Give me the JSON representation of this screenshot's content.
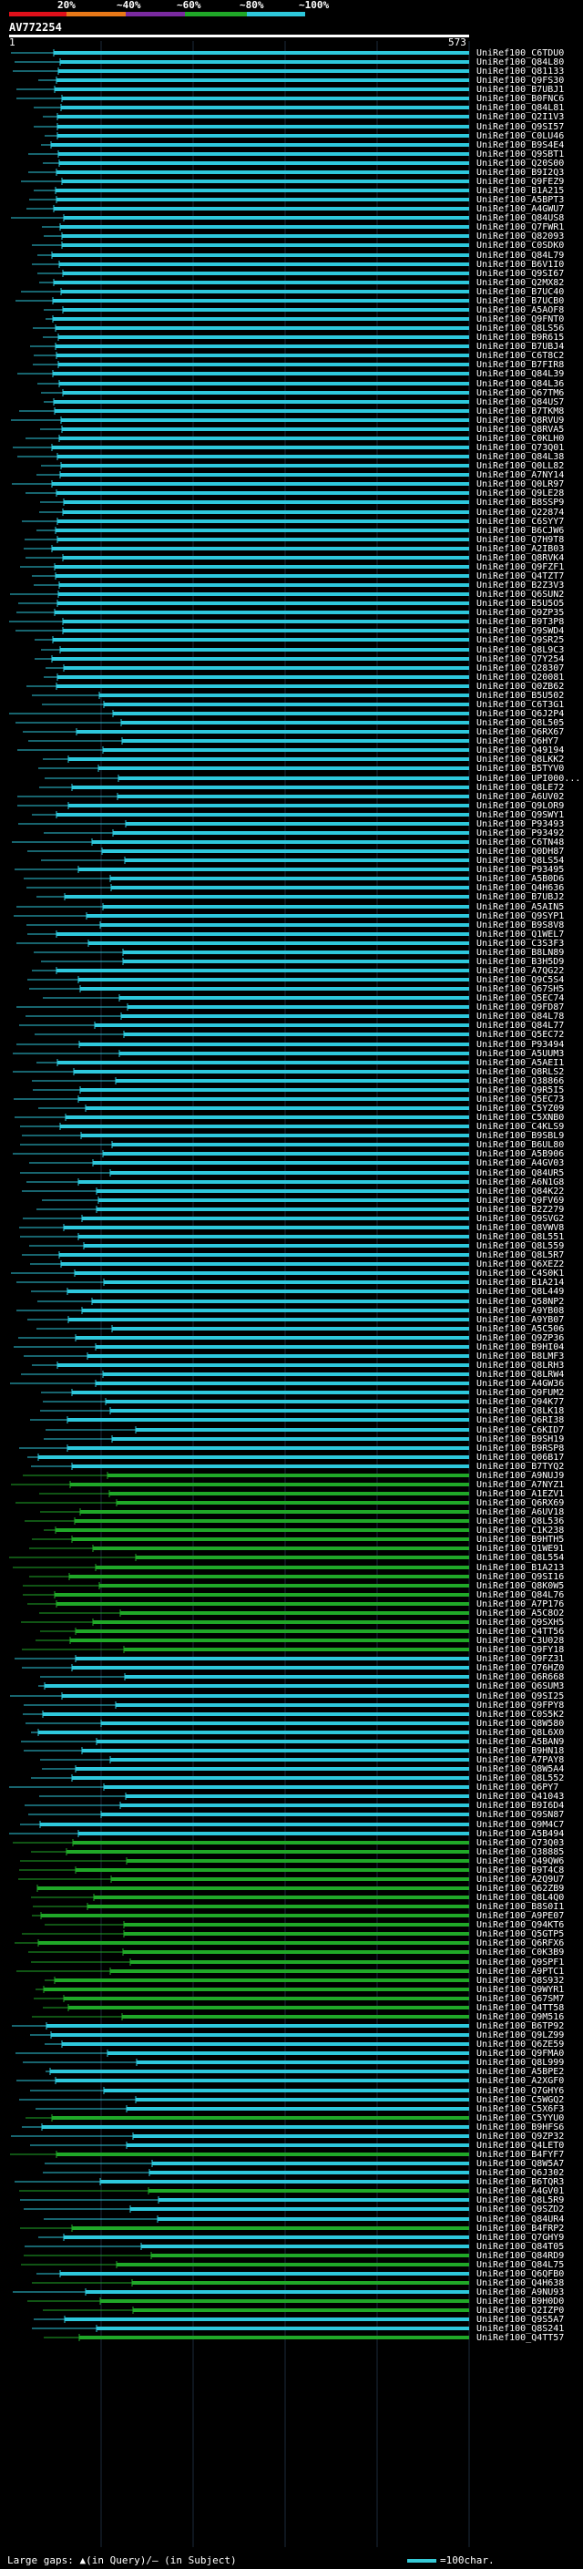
{
  "query_id": "AV772254",
  "ruler": {
    "start": "1",
    "end": "573"
  },
  "legend": {
    "ticks": [
      "20%",
      "~40%",
      "~60%",
      "~80%",
      "~100%"
    ],
    "colors": [
      "#e0101a",
      "#e87818",
      "#7a2aa0",
      "#20a828",
      "#2ec8dc"
    ]
  },
  "footer": {
    "gaps": "Large gaps: ▲(in Query)/– (in Subject)",
    "scale": "=100char."
  },
  "hits": [
    "UniRef100_C6TDU0",
    "UniRef100_Q84L80",
    "UniRef100_Q81133",
    "UniRef100_Q9FS30",
    "UniRef100_B7UBJ1",
    "UniRef100_B0FNC6",
    "UniRef100_Q84L81",
    "UniRef100_Q2I1V3",
    "UniRef100_Q9SI57",
    "UniRef100_C0LU46",
    "UniRef100_B9S4E4",
    "UniRef100_Q9SBT1",
    "UniRef100_Q20S00",
    "UniRef100_B9I2Q3",
    "UniRef100_Q9FEZ9",
    "UniRef100_B1A215",
    "UniRef100_A5BPT3",
    "UniRef100_A4GWU7",
    "UniRef100_Q84US8",
    "UniRef100_Q7FWR1",
    "UniRef100_Q82093",
    "UniRef100_C0SDK0",
    "UniRef100_Q84L79",
    "UniRef100_B6V1I0",
    "UniRef100_Q9SI67",
    "UniRef100_Q2MX82",
    "UniRef100_B7UC40",
    "UniRef100_B7UCB0",
    "UniRef100_A5AOF8",
    "UniRef100_Q9FNT0",
    "UniRef100_Q8LS56",
    "UniRef100_B9R615",
    "UniRef100_B7UBJ4",
    "UniRef100_C6T8C2",
    "UniRef100_B7FIR8",
    "UniRef100_Q84L39",
    "UniRef100_Q84L36",
    "UniRef100_Q67TM6",
    "UniRef100_Q84US7",
    "UniRef100_B7TKM8",
    "UniRef100_Q8RVU9",
    "UniRef100_Q8RVA5",
    "UniRef100_C0KLH0",
    "UniRef100_Q73Q01",
    "UniRef100_Q84L38",
    "UniRef100_Q0LL82",
    "UniRef100_A7NY14",
    "UniRef100_Q0LR97",
    "UniRef100_Q9LE28",
    "UniRef100_B8SSP9",
    "UniRef100_Q22874",
    "UniRef100_C6SYY7",
    "UniRef100_B6CJW6",
    "UniRef100_Q7H9T8",
    "UniRef100_A2IB03",
    "UniRef100_Q8RVK4",
    "UniRef100_Q9FZF1",
    "UniRef100_Q4TZT7",
    "UniRef100_B2Z3V3",
    "UniRef100_Q6SUN2",
    "UniRef100_B5U5O5",
    "UniRef100_Q9ZP35",
    "UniRef100_B9T3P8",
    "UniRef100_Q9SWD4",
    "UniRef100_Q9SR25",
    "UniRef100_Q8L9C3",
    "UniRef100_Q7Y254",
    "UniRef100_Q28307",
    "UniRef100_Q20081",
    "UniRef100_Q0ZB62",
    "UniRef100_B5U502",
    "UniRef100_C6T3G1",
    "UniRef100_Q6J2P4",
    "UniRef100_Q8L505",
    "UniRef100_Q6RX67",
    "UniRef100_Q6HY7",
    "UniRef100_Q49194",
    "UniRef100_Q8LKK2",
    "UniRef100_B5TYV0",
    "UniRef100_UPI000...",
    "UniRef100_Q8LE72",
    "UniRef100_A6UV02",
    "UniRef100_Q9LOR9",
    "UniRef100_Q9SWY1",
    "UniRef100_P93493",
    "UniRef100_P93492",
    "UniRef100_C6TN48",
    "UniRef100_Q0DH87",
    "UniRef100_Q8LS54",
    "UniRef100_P93495",
    "UniRef100_A5B0D6",
    "UniRef100_Q4H636",
    "UniRef100_B7UBJ2",
    "UniRef100_A5AIN5",
    "UniRef100_Q9SYP1",
    "UniRef100_B9S8V8",
    "UniRef100_Q1WEL7",
    "UniRef100_C3S3F3",
    "UniRef100_B8LN89",
    "UniRef100_B3H5D9",
    "UniRef100_A7QG22",
    "UniRef100_Q9C5S4",
    "UniRef100_Q67SH5",
    "UniRef100_Q5EC74",
    "UniRef100_Q9FD87",
    "UniRef100_Q84L78",
    "UniRef100_Q84L77",
    "UniRef100_Q5EC72",
    "UniRef100_P93494",
    "UniRef100_A5UUM3",
    "UniRef100_A5AEI1",
    "UniRef100_Q8RLS2",
    "UniRef100_Q38866",
    "UniRef100_Q9R5I5",
    "UniRef100_Q5EC73",
    "UniRef100_C5YZ09",
    "UniRef100_C5XNB0",
    "UniRef100_C4KLS9",
    "UniRef100_B9SBL9",
    "UniRef100_B6UL80",
    "UniRef100_A5B906",
    "UniRef100_A4GV03",
    "UniRef100_Q84UR5",
    "UniRef100_A6N1G8",
    "UniRef100_Q84K22",
    "UniRef100_Q9FV69",
    "UniRef100_B2Z279",
    "UniRef100_Q9SVG2",
    "UniRef100_Q8VWV8",
    "UniRef100_Q8L551",
    "UniRef100_Q8L559",
    "UniRef100_Q8L5R7",
    "UniRef100_Q6XEZ2",
    "UniRef100_C4S0K1",
    "UniRef100_B1A214",
    "UniRef100_Q8L449",
    "UniRef100_Q58NP2",
    "UniRef100_A9YB08",
    "UniRef100_A9YB07",
    "UniRef100_A5C506",
    "UniRef100_Q9ZP36",
    "UniRef100_B9HI04",
    "UniRef100_B8LMF3",
    "UniRef100_Q8LRH3",
    "UniRef100_Q8LRW4",
    "UniRef100_A4GW36",
    "UniRef100_Q9FUM2",
    "UniRef100_Q94K77",
    "UniRef100_Q8LK18",
    "UniRef100_Q6RI38",
    "UniRef100_C6KID7",
    "UniRef100_B9SH19",
    "UniRef100_B9RSP8",
    "UniRef100_Q06B17",
    "UniRef100_B7TYQ2",
    "UniRef100_A9NUJ9",
    "UniRef100_A7NYZ1",
    "UniRef100_A1EZV1",
    "UniRef100_Q6RX69",
    "UniRef100_A6UV18",
    "UniRef100_Q8L536",
    "UniRef100_C1K238",
    "UniRef100_B9HTH5",
    "UniRef100_Q1WE91",
    "UniRef100_Q8L554",
    "UniRef100_B1A213",
    "UniRef100_Q9SI16",
    "UniRef100_Q8K0W5",
    "UniRef100_Q84L76",
    "UniRef100_A7P176",
    "UniRef100_A5C8O2",
    "UniRef100_Q9SXH5",
    "UniRef100_Q4TT56",
    "UniRef100_C3U028",
    "UniRef100_Q9FY18",
    "UniRef100_Q9FZ31",
    "UniRef100_Q76HZ0",
    "UniRef100_Q6R668",
    "UniRef100_Q6SUM3",
    "UniRef100_Q9SI25",
    "UniRef100_Q9FPY8",
    "UniRef100_C0S5K2",
    "UniRef100_Q8W580",
    "UniRef100_Q8L6X0",
    "UniRef100_A5BAN9",
    "UniRef100_B9HN18",
    "UniRef100_A7PAY8",
    "UniRef100_Q8W5A4",
    "UniRef100_Q8L552",
    "UniRef100_Q6PY7",
    "UniRef100_Q41043",
    "UniRef100_B9I6D4",
    "UniRef100_Q9SN87",
    "UniRef100_Q9M4C7",
    "UniRef100_A5B494",
    "UniRef100_Q73Q03",
    "UniRef100_Q38885",
    "UniRef100_Q49QW6",
    "UniRef100_B9T4C8",
    "UniRef100_A2Q9U7",
    "UniRef100_Q62ZB9",
    "UniRef100_Q8L4Q0",
    "UniRef100_B8S0I1",
    "UniRef100_A9PE07",
    "UniRef100_Q94KT6",
    "UniRef100_Q5GTP5",
    "UniRef100_Q6RFX6",
    "UniRef100_C0K3B9",
    "UniRef100_Q9SPF1",
    "UniRef100_A9PTC1",
    "UniRef100_Q8S932",
    "UniRef100_Q9WYR1",
    "UniRef100_Q67SM7",
    "UniRef100_Q4TT58",
    "UniRef100_Q9M516",
    "UniRef100_B6TP92",
    "UniRef100_Q9LZ99",
    "UniRef100_Q6ZE59",
    "UniRef100_Q9FMA0",
    "UniRef100_Q8L999",
    "UniRef100_A5BPE2",
    "UniRef100_A2XGF0",
    "UniRef100_Q7GHY6",
    "UniRef100_C5WGQ2",
    "UniRef100_C5X6F3",
    "UniRef100_C5YYU0",
    "UniRef100_B9HFS6",
    "UniRef100_Q9ZP32",
    "UniRef100_Q4LET0",
    "UniRef100_B4FYF7",
    "UniRef100_Q8W5A7",
    "UniRef100_Q6J302",
    "UniRef100_B6TQR3",
    "UniRef100_A4GV01",
    "UniRef100_Q8L5R9",
    "UniRef100_Q9SZD2",
    "UniRef100_Q84UR4",
    "UniRef100_B4FRP2",
    "UniRef100_Q7GHY9",
    "UniRef100_Q84T05",
    "UniRef100_Q84RD9",
    "UniRef100_Q84L75",
    "UniRef100_Q6QFB0",
    "UniRef100_Q4H638",
    "UniRef100_A9NU93",
    "UniRef100_B9H0D0",
    "UniRef100_Q2IZP0",
    "UniRef100_Q9S5A7",
    "UniRef100_Q8S241",
    "UniRef100_Q4TT57"
  ]
}
